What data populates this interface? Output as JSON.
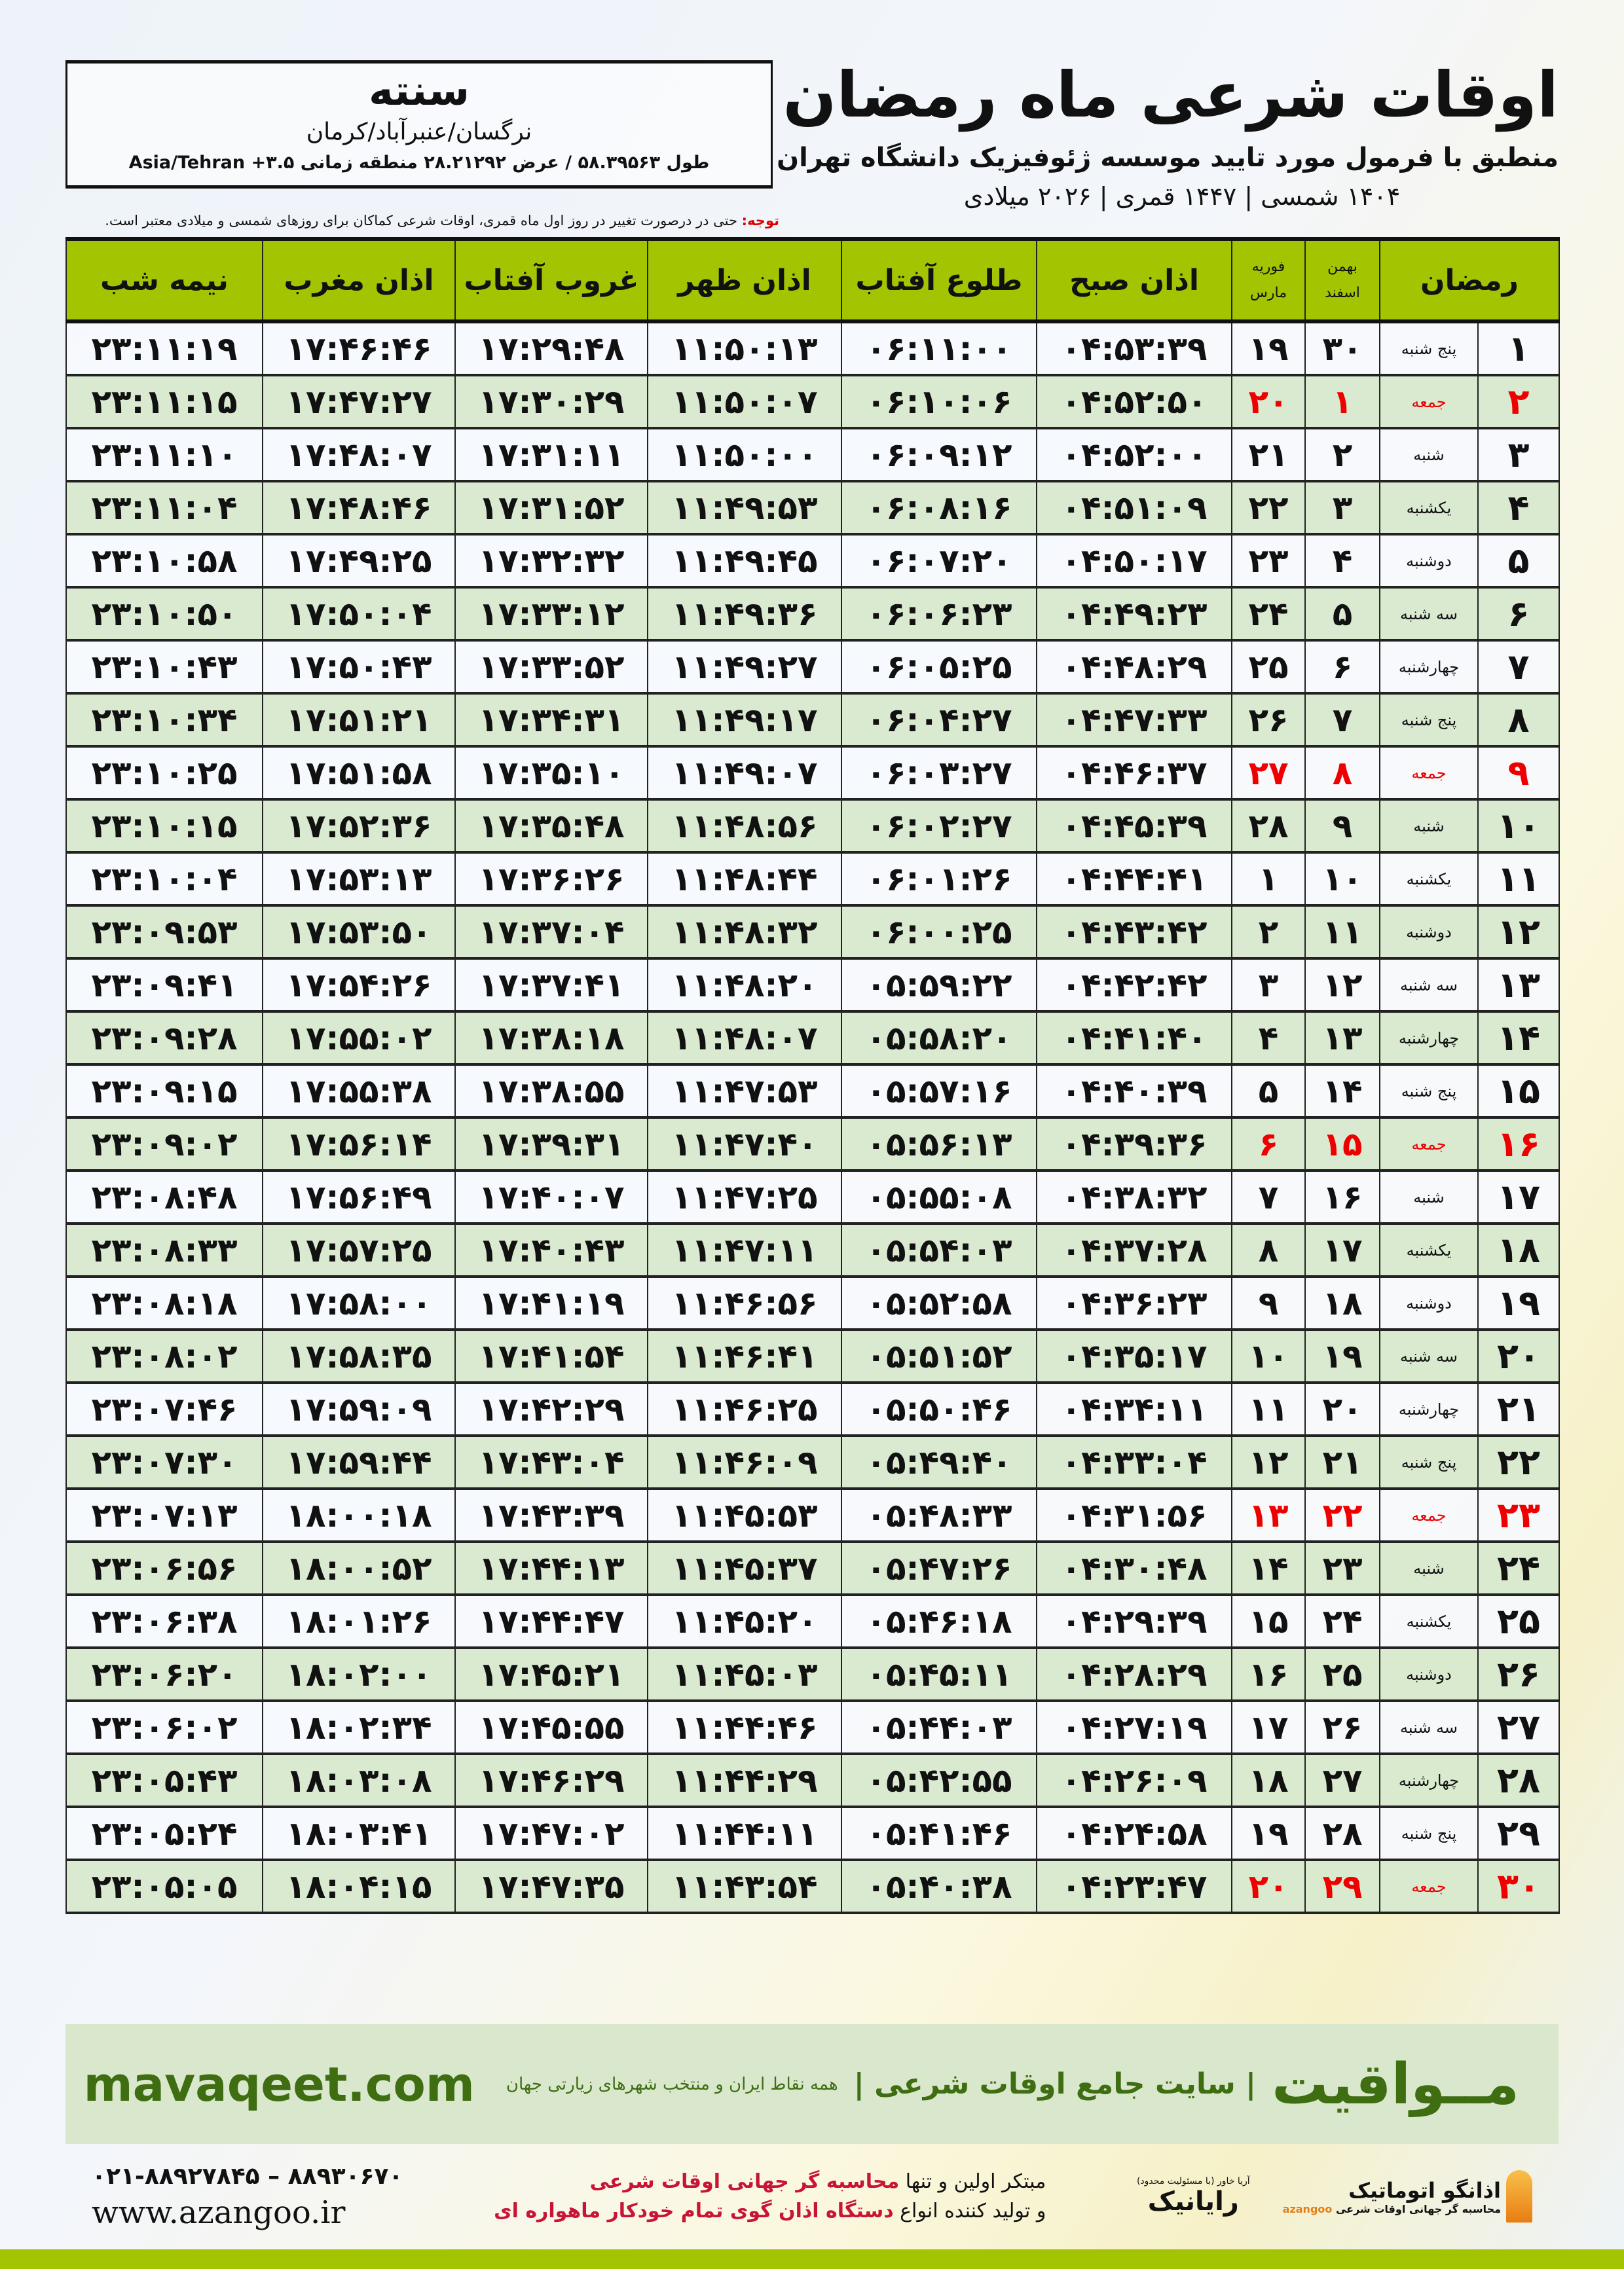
{
  "header": {
    "title": "اوقات شرعی ماه رمضان",
    "subtitle": "منطبق با فرمول مورد تایید موسسه ژئوفیزیک دانشگاه تهران",
    "years": "۱۴۰۴ شمسی | ۱۴۴۷ قمری | ۲۰۲۶ میلادی"
  },
  "city": {
    "name": "سنته",
    "path": "نرگسان/عنبرآباد/کرمان",
    "coords": "طول ۵۸.۳۹۵۶۳ / عرض ۲۸.۲۱۲۹۲ منطقه زمانی ۳.۵+ Asia/Tehran"
  },
  "note": {
    "label": "توجه:",
    "text": " حتی در درصورت تغییر در روز اول ماه قمری، اوقات شرعی کماکان برای روزهای شمسی و میلادی معتبر است."
  },
  "table": {
    "headers": {
      "ramadan": "رمضان",
      "shamsi_top": "بهمن",
      "shamsi_bottom": "اسفند",
      "miladi_top": "فوریه",
      "miladi_bottom": "مارس",
      "sobh": "اذان صبح",
      "tolu": "طلوع آفتاب",
      "zohr": "اذان ظهر",
      "ghorub": "غروب آفتاب",
      "maghrib": "اذان مغرب",
      "nimeshab": "نیمه شب"
    },
    "friday_color": "#e00000",
    "rows": [
      [
        "۱",
        "پنج شنبه",
        "۳۰",
        "۱۹",
        "۰۴:۵۳:۳۹",
        "۰۶:۱۱:۰۰",
        "۱۱:۵۰:۱۳",
        "۱۷:۲۹:۴۸",
        "۱۷:۴۶:۴۶",
        "۲۳:۱۱:۱۹"
      ],
      [
        "۲",
        "جمعه",
        "۱",
        "۲۰",
        "۰۴:۵۲:۵۰",
        "۰۶:۱۰:۰۶",
        "۱۱:۵۰:۰۷",
        "۱۷:۳۰:۲۹",
        "۱۷:۴۷:۲۷",
        "۲۳:۱۱:۱۵"
      ],
      [
        "۳",
        "شنبه",
        "۲",
        "۲۱",
        "۰۴:۵۲:۰۰",
        "۰۶:۰۹:۱۲",
        "۱۱:۵۰:۰۰",
        "۱۷:۳۱:۱۱",
        "۱۷:۴۸:۰۷",
        "۲۳:۱۱:۱۰"
      ],
      [
        "۴",
        "یکشنبه",
        "۳",
        "۲۲",
        "۰۴:۵۱:۰۹",
        "۰۶:۰۸:۱۶",
        "۱۱:۴۹:۵۳",
        "۱۷:۳۱:۵۲",
        "۱۷:۴۸:۴۶",
        "۲۳:۱۱:۰۴"
      ],
      [
        "۵",
        "دوشنبه",
        "۴",
        "۲۳",
        "۰۴:۵۰:۱۷",
        "۰۶:۰۷:۲۰",
        "۱۱:۴۹:۴۵",
        "۱۷:۳۲:۳۲",
        "۱۷:۴۹:۲۵",
        "۲۳:۱۰:۵۸"
      ],
      [
        "۶",
        "سه شنبه",
        "۵",
        "۲۴",
        "۰۴:۴۹:۲۳",
        "۰۶:۰۶:۲۳",
        "۱۱:۴۹:۳۶",
        "۱۷:۳۳:۱۲",
        "۱۷:۵۰:۰۴",
        "۲۳:۱۰:۵۰"
      ],
      [
        "۷",
        "چهارشنبه",
        "۶",
        "۲۵",
        "۰۴:۴۸:۲۹",
        "۰۶:۰۵:۲۵",
        "۱۱:۴۹:۲۷",
        "۱۷:۳۳:۵۲",
        "۱۷:۵۰:۴۳",
        "۲۳:۱۰:۴۳"
      ],
      [
        "۸",
        "پنج شنبه",
        "۷",
        "۲۶",
        "۰۴:۴۷:۳۳",
        "۰۶:۰۴:۲۷",
        "۱۱:۴۹:۱۷",
        "۱۷:۳۴:۳۱",
        "۱۷:۵۱:۲۱",
        "۲۳:۱۰:۳۴"
      ],
      [
        "۹",
        "جمعه",
        "۸",
        "۲۷",
        "۰۴:۴۶:۳۷",
        "۰۶:۰۳:۲۷",
        "۱۱:۴۹:۰۷",
        "۱۷:۳۵:۱۰",
        "۱۷:۵۱:۵۸",
        "۲۳:۱۰:۲۵"
      ],
      [
        "۱۰",
        "شنبه",
        "۹",
        "۲۸",
        "۰۴:۴۵:۳۹",
        "۰۶:۰۲:۲۷",
        "۱۱:۴۸:۵۶",
        "۱۷:۳۵:۴۸",
        "۱۷:۵۲:۳۶",
        "۲۳:۱۰:۱۵"
      ],
      [
        "۱۱",
        "یکشنبه",
        "۱۰",
        "۱",
        "۰۴:۴۴:۴۱",
        "۰۶:۰۱:۲۶",
        "۱۱:۴۸:۴۴",
        "۱۷:۳۶:۲۶",
        "۱۷:۵۳:۱۳",
        "۲۳:۱۰:۰۴"
      ],
      [
        "۱۲",
        "دوشنبه",
        "۱۱",
        "۲",
        "۰۴:۴۳:۴۲",
        "۰۶:۰۰:۲۵",
        "۱۱:۴۸:۳۲",
        "۱۷:۳۷:۰۴",
        "۱۷:۵۳:۵۰",
        "۲۳:۰۹:۵۳"
      ],
      [
        "۱۳",
        "سه شنبه",
        "۱۲",
        "۳",
        "۰۴:۴۲:۴۲",
        "۰۵:۵۹:۲۲",
        "۱۱:۴۸:۲۰",
        "۱۷:۳۷:۴۱",
        "۱۷:۵۴:۲۶",
        "۲۳:۰۹:۴۱"
      ],
      [
        "۱۴",
        "چهارشنبه",
        "۱۳",
        "۴",
        "۰۴:۴۱:۴۰",
        "۰۵:۵۸:۲۰",
        "۱۱:۴۸:۰۷",
        "۱۷:۳۸:۱۸",
        "۱۷:۵۵:۰۲",
        "۲۳:۰۹:۲۸"
      ],
      [
        "۱۵",
        "پنج شنبه",
        "۱۴",
        "۵",
        "۰۴:۴۰:۳۹",
        "۰۵:۵۷:۱۶",
        "۱۱:۴۷:۵۳",
        "۱۷:۳۸:۵۵",
        "۱۷:۵۵:۳۸",
        "۲۳:۰۹:۱۵"
      ],
      [
        "۱۶",
        "جمعه",
        "۱۵",
        "۶",
        "۰۴:۳۹:۳۶",
        "۰۵:۵۶:۱۳",
        "۱۱:۴۷:۴۰",
        "۱۷:۳۹:۳۱",
        "۱۷:۵۶:۱۴",
        "۲۳:۰۹:۰۲"
      ],
      [
        "۱۷",
        "شنبه",
        "۱۶",
        "۷",
        "۰۴:۳۸:۳۲",
        "۰۵:۵۵:۰۸",
        "۱۱:۴۷:۲۵",
        "۱۷:۴۰:۰۷",
        "۱۷:۵۶:۴۹",
        "۲۳:۰۸:۴۸"
      ],
      [
        "۱۸",
        "یکشنبه",
        "۱۷",
        "۸",
        "۰۴:۳۷:۲۸",
        "۰۵:۵۴:۰۳",
        "۱۱:۴۷:۱۱",
        "۱۷:۴۰:۴۳",
        "۱۷:۵۷:۲۵",
        "۲۳:۰۸:۳۳"
      ],
      [
        "۱۹",
        "دوشنبه",
        "۱۸",
        "۹",
        "۰۴:۳۶:۲۳",
        "۰۵:۵۲:۵۸",
        "۱۱:۴۶:۵۶",
        "۱۷:۴۱:۱۹",
        "۱۷:۵۸:۰۰",
        "۲۳:۰۸:۱۸"
      ],
      [
        "۲۰",
        "سه شنبه",
        "۱۹",
        "۱۰",
        "۰۴:۳۵:۱۷",
        "۰۵:۵۱:۵۲",
        "۱۱:۴۶:۴۱",
        "۱۷:۴۱:۵۴",
        "۱۷:۵۸:۳۵",
        "۲۳:۰۸:۰۲"
      ],
      [
        "۲۱",
        "چهارشنبه",
        "۲۰",
        "۱۱",
        "۰۴:۳۴:۱۱",
        "۰۵:۵۰:۴۶",
        "۱۱:۴۶:۲۵",
        "۱۷:۴۲:۲۹",
        "۱۷:۵۹:۰۹",
        "۲۳:۰۷:۴۶"
      ],
      [
        "۲۲",
        "پنج شنبه",
        "۲۱",
        "۱۲",
        "۰۴:۳۳:۰۴",
        "۰۵:۴۹:۴۰",
        "۱۱:۴۶:۰۹",
        "۱۷:۴۳:۰۴",
        "۱۷:۵۹:۴۴",
        "۲۳:۰۷:۳۰"
      ],
      [
        "۲۳",
        "جمعه",
        "۲۲",
        "۱۳",
        "۰۴:۳۱:۵۶",
        "۰۵:۴۸:۳۳",
        "۱۱:۴۵:۵۳",
        "۱۷:۴۳:۳۹",
        "۱۸:۰۰:۱۸",
        "۲۳:۰۷:۱۳"
      ],
      [
        "۲۴",
        "شنبه",
        "۲۳",
        "۱۴",
        "۰۴:۳۰:۴۸",
        "۰۵:۴۷:۲۶",
        "۱۱:۴۵:۳۷",
        "۱۷:۴۴:۱۳",
        "۱۸:۰۰:۵۲",
        "۲۳:۰۶:۵۶"
      ],
      [
        "۲۵",
        "یکشنبه",
        "۲۴",
        "۱۵",
        "۰۴:۲۹:۳۹",
        "۰۵:۴۶:۱۸",
        "۱۱:۴۵:۲۰",
        "۱۷:۴۴:۴۷",
        "۱۸:۰۱:۲۶",
        "۲۳:۰۶:۳۸"
      ],
      [
        "۲۶",
        "دوشنبه",
        "۲۵",
        "۱۶",
        "۰۴:۲۸:۲۹",
        "۰۵:۴۵:۱۱",
        "۱۱:۴۵:۰۳",
        "۱۷:۴۵:۲۱",
        "۱۸:۰۲:۰۰",
        "۲۳:۰۶:۲۰"
      ],
      [
        "۲۷",
        "سه شنبه",
        "۲۶",
        "۱۷",
        "۰۴:۲۷:۱۹",
        "۰۵:۴۴:۰۳",
        "۱۱:۴۴:۴۶",
        "۱۷:۴۵:۵۵",
        "۱۸:۰۲:۳۴",
        "۲۳:۰۶:۰۲"
      ],
      [
        "۲۸",
        "چهارشنبه",
        "۲۷",
        "۱۸",
        "۰۴:۲۶:۰۹",
        "۰۵:۴۲:۵۵",
        "۱۱:۴۴:۲۹",
        "۱۷:۴۶:۲۹",
        "۱۸:۰۳:۰۸",
        "۲۳:۰۵:۴۳"
      ],
      [
        "۲۹",
        "پنج شنبه",
        "۲۸",
        "۱۹",
        "۰۴:۲۴:۵۸",
        "۰۵:۴۱:۴۶",
        "۱۱:۴۴:۱۱",
        "۱۷:۴۷:۰۲",
        "۱۸:۰۳:۴۱",
        "۲۳:۰۵:۲۴"
      ],
      [
        "۳۰",
        "جمعه",
        "۲۹",
        "۲۰",
        "۰۴:۲۳:۴۷",
        "۰۵:۴۰:۳۸",
        "۱۱:۴۳:۵۴",
        "۱۷:۴۷:۳۵",
        "۱۸:۰۴:۱۵",
        "۲۳:۰۵:۰۵"
      ]
    ]
  },
  "banner": {
    "brand": "مــواقیت",
    "slogan": "| سایت جامع اوقات شرعی |",
    "slogan2": "همه نقاط ایران و منتخب شهرهای زیارتی جهان",
    "url": "mavaqeet.com",
    "color": "#3f6d12"
  },
  "footer": {
    "phones": "۰۲۱-۸۸۹۲۷۸۴۵ – ۸۸۹۳۰۶۷۰",
    "site": "www.azangoo.ir",
    "promo_1a": "مبتکر اولین و تنها ",
    "promo_1b": "محاسبه گر جهانی اوقات شرعی",
    "promo_2a": "و تولید کننده انواع ",
    "promo_2b": "دستگاه اذان گوی تمام خودکار ماهواره ای",
    "logo_rayanik": "رایانیک",
    "logo_rayanik_sub": "آریا خاور (با مسئولیت محدود)",
    "logo_azangoo": "اذانگو اتوماتیک",
    "logo_azangoo_sub": "محاسبه گر جهانی اوقات شرعی",
    "logo_azangoo_en": "azangoo"
  }
}
